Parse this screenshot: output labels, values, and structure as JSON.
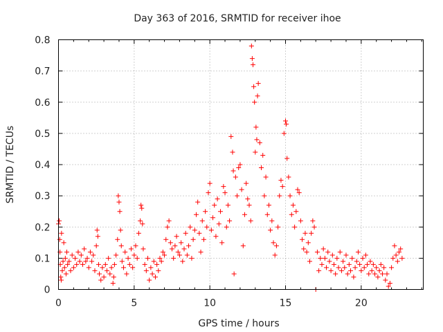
{
  "chart_data": {
    "type": "scatter",
    "title": "Day 363 of 2016, SRMTID for receiver ihoe",
    "xlabel": "GPS time / hours",
    "ylabel": "SRMTID / TECUs",
    "xlim": [
      0,
      24.1
    ],
    "ylim": [
      0,
      0.8
    ],
    "xticks": [
      0,
      5,
      10,
      15,
      20
    ],
    "xtick_labels": [
      "0",
      "5",
      "10",
      "15",
      "20"
    ],
    "yticks": [
      0,
      0.1,
      0.2,
      0.3,
      0.4,
      0.5,
      0.6,
      0.7,
      0.8
    ],
    "ytick_labels": [
      "0",
      "0.1",
      "0.2",
      "0.3",
      "0.4",
      "0.5",
      "0.6",
      "0.7",
      "0.8"
    ],
    "grid": true,
    "marker": "plus",
    "color": "#ff0000",
    "series": [
      {
        "name": "SRMTID",
        "points": [
          [
            0.0,
            0.21
          ],
          [
            0.05,
            0.22
          ],
          [
            0.08,
            0.16
          ],
          [
            0.1,
            0.12
          ],
          [
            0.12,
            0.08
          ],
          [
            0.15,
            0.04
          ],
          [
            0.18,
            0.03
          ],
          [
            0.2,
            0.18
          ],
          [
            0.25,
            0.06
          ],
          [
            0.3,
            0.09
          ],
          [
            0.35,
            0.15
          ],
          [
            0.4,
            0.07
          ],
          [
            0.45,
            0.1
          ],
          [
            0.5,
            0.05
          ],
          [
            0.55,
            0.12
          ],
          [
            0.6,
            0.08
          ],
          [
            0.7,
            0.09
          ],
          [
            0.8,
            0.06
          ],
          [
            0.9,
            0.11
          ],
          [
            1.0,
            0.07
          ],
          [
            1.1,
            0.1
          ],
          [
            1.2,
            0.08
          ],
          [
            1.3,
            0.12
          ],
          [
            1.4,
            0.09
          ],
          [
            1.5,
            0.11
          ],
          [
            1.6,
            0.08
          ],
          [
            1.7,
            0.13
          ],
          [
            1.8,
            0.09
          ],
          [
            1.9,
            0.1
          ],
          [
            2.0,
            0.07
          ],
          [
            2.1,
            0.12
          ],
          [
            2.2,
            0.09
          ],
          [
            2.3,
            0.11
          ],
          [
            2.4,
            0.06
          ],
          [
            2.5,
            0.14
          ],
          [
            2.55,
            0.19
          ],
          [
            2.6,
            0.17
          ],
          [
            2.65,
            0.08
          ],
          [
            2.7,
            0.05
          ],
          [
            2.8,
            0.03
          ],
          [
            2.9,
            0.07
          ],
          [
            3.0,
            0.04
          ],
          [
            3.1,
            0.08
          ],
          [
            3.2,
            0.06
          ],
          [
            3.3,
            0.1
          ],
          [
            3.4,
            0.05
          ],
          [
            3.5,
            0.07
          ],
          [
            3.6,
            0.02
          ],
          [
            3.65,
            0.04
          ],
          [
            3.7,
            0.08
          ],
          [
            3.8,
            0.11
          ],
          [
            3.9,
            0.16
          ],
          [
            3.95,
            0.3
          ],
          [
            4.0,
            0.28
          ],
          [
            4.05,
            0.25
          ],
          [
            4.1,
            0.19
          ],
          [
            4.15,
            0.14
          ],
          [
            4.2,
            0.09
          ],
          [
            4.3,
            0.07
          ],
          [
            4.4,
            0.12
          ],
          [
            4.5,
            0.05
          ],
          [
            4.6,
            0.1
          ],
          [
            4.7,
            0.08
          ],
          [
            4.8,
            0.13
          ],
          [
            4.9,
            0.07
          ],
          [
            5.0,
            0.11
          ],
          [
            5.1,
            0.14
          ],
          [
            5.2,
            0.1
          ],
          [
            5.3,
            0.18
          ],
          [
            5.4,
            0.22
          ],
          [
            5.45,
            0.27
          ],
          [
            5.5,
            0.26
          ],
          [
            5.55,
            0.21
          ],
          [
            5.6,
            0.13
          ],
          [
            5.7,
            0.08
          ],
          [
            5.8,
            0.06
          ],
          [
            5.9,
            0.1
          ],
          [
            6.0,
            0.03
          ],
          [
            6.1,
            0.07
          ],
          [
            6.2,
            0.05
          ],
          [
            6.3,
            0.09
          ],
          [
            6.4,
            0.04
          ],
          [
            6.5,
            0.08
          ],
          [
            6.6,
            0.06
          ],
          [
            6.7,
            0.1
          ],
          [
            6.8,
            0.09
          ],
          [
            6.9,
            0.12
          ],
          [
            7.0,
            0.11
          ],
          [
            7.1,
            0.16
          ],
          [
            7.2,
            0.2
          ],
          [
            7.3,
            0.22
          ],
          [
            7.4,
            0.15
          ],
          [
            7.5,
            0.13
          ],
          [
            7.6,
            0.1
          ],
          [
            7.7,
            0.14
          ],
          [
            7.8,
            0.17
          ],
          [
            7.9,
            0.12
          ],
          [
            8.0,
            0.11
          ],
          [
            8.1,
            0.15
          ],
          [
            8.2,
            0.09
          ],
          [
            8.3,
            0.13
          ],
          [
            8.4,
            0.18
          ],
          [
            8.5,
            0.11
          ],
          [
            8.6,
            0.14
          ],
          [
            8.7,
            0.2
          ],
          [
            8.8,
            0.1
          ],
          [
            8.9,
            0.16
          ],
          [
            9.0,
            0.19
          ],
          [
            9.1,
            0.24
          ],
          [
            9.2,
            0.28
          ],
          [
            9.3,
            0.18
          ],
          [
            9.4,
            0.12
          ],
          [
            9.5,
            0.22
          ],
          [
            9.6,
            0.16
          ],
          [
            9.7,
            0.25
          ],
          [
            9.8,
            0.2
          ],
          [
            9.9,
            0.31
          ],
          [
            10.0,
            0.34
          ],
          [
            10.1,
            0.19
          ],
          [
            10.2,
            0.23
          ],
          [
            10.3,
            0.27
          ],
          [
            10.4,
            0.17
          ],
          [
            10.5,
            0.29
          ],
          [
            10.6,
            0.21
          ],
          [
            10.7,
            0.25
          ],
          [
            10.8,
            0.15
          ],
          [
            10.9,
            0.33
          ],
          [
            11.0,
            0.31
          ],
          [
            11.1,
            0.2
          ],
          [
            11.2,
            0.27
          ],
          [
            11.3,
            0.22
          ],
          [
            11.4,
            0.49
          ],
          [
            11.5,
            0.44
          ],
          [
            11.55,
            0.38
          ],
          [
            11.6,
            0.05
          ],
          [
            11.7,
            0.36
          ],
          [
            11.8,
            0.3
          ],
          [
            11.9,
            0.39
          ],
          [
            12.0,
            0.4
          ],
          [
            12.1,
            0.32
          ],
          [
            12.2,
            0.14
          ],
          [
            12.3,
            0.24
          ],
          [
            12.4,
            0.34
          ],
          [
            12.5,
            0.29
          ],
          [
            12.6,
            0.27
          ],
          [
            12.7,
            0.22
          ],
          [
            12.75,
            0.78
          ],
          [
            12.8,
            0.74
          ],
          [
            12.85,
            0.72
          ],
          [
            12.9,
            0.65
          ],
          [
            12.95,
            0.6
          ],
          [
            13.0,
            0.44
          ],
          [
            13.05,
            0.52
          ],
          [
            13.1,
            0.48
          ],
          [
            13.15,
            0.62
          ],
          [
            13.2,
            0.66
          ],
          [
            13.3,
            0.47
          ],
          [
            13.4,
            0.39
          ],
          [
            13.5,
            0.43
          ],
          [
            13.6,
            0.3
          ],
          [
            13.7,
            0.36
          ],
          [
            13.8,
            0.24
          ],
          [
            13.9,
            0.27
          ],
          [
            14.0,
            0.19
          ],
          [
            14.1,
            0.22
          ],
          [
            14.2,
            0.15
          ],
          [
            14.3,
            0.11
          ],
          [
            14.4,
            0.14
          ],
          [
            14.5,
            0.2
          ],
          [
            14.6,
            0.3
          ],
          [
            14.7,
            0.35
          ],
          [
            14.8,
            0.33
          ],
          [
            14.9,
            0.5
          ],
          [
            15.0,
            0.54
          ],
          [
            15.05,
            0.53
          ],
          [
            15.1,
            0.42
          ],
          [
            15.2,
            0.36
          ],
          [
            15.3,
            0.3
          ],
          [
            15.4,
            0.24
          ],
          [
            15.5,
            0.27
          ],
          [
            15.6,
            0.2
          ],
          [
            15.7,
            0.25
          ],
          [
            15.8,
            0.32
          ],
          [
            15.9,
            0.31
          ],
          [
            16.0,
            0.22
          ],
          [
            16.1,
            0.16
          ],
          [
            16.2,
            0.13
          ],
          [
            16.3,
            0.18
          ],
          [
            16.4,
            0.12
          ],
          [
            16.5,
            0.15
          ],
          [
            16.6,
            0.09
          ],
          [
            16.7,
            0.18
          ],
          [
            16.8,
            0.22
          ],
          [
            16.9,
            0.2
          ],
          [
            17.0,
            0.0
          ],
          [
            17.1,
            0.12
          ],
          [
            17.2,
            0.06
          ],
          [
            17.3,
            0.1
          ],
          [
            17.4,
            0.08
          ],
          [
            17.5,
            0.13
          ],
          [
            17.6,
            0.1
          ],
          [
            17.7,
            0.07
          ],
          [
            17.8,
            0.12
          ],
          [
            17.9,
            0.09
          ],
          [
            18.0,
            0.06
          ],
          [
            18.1,
            0.11
          ],
          [
            18.2,
            0.08
          ],
          [
            18.3,
            0.05
          ],
          [
            18.4,
            0.1
          ],
          [
            18.5,
            0.07
          ],
          [
            18.6,
            0.12
          ],
          [
            18.7,
            0.06
          ],
          [
            18.8,
            0.09
          ],
          [
            18.9,
            0.07
          ],
          [
            19.0,
            0.11
          ],
          [
            19.1,
            0.05
          ],
          [
            19.2,
            0.08
          ],
          [
            19.3,
            0.06
          ],
          [
            19.4,
            0.1
          ],
          [
            19.5,
            0.04
          ],
          [
            19.6,
            0.07
          ],
          [
            19.7,
            0.09
          ],
          [
            19.8,
            0.12
          ],
          [
            19.9,
            0.08
          ],
          [
            20.0,
            0.06
          ],
          [
            20.1,
            0.1
          ],
          [
            20.2,
            0.07
          ],
          [
            20.3,
            0.11
          ],
          [
            20.4,
            0.08
          ],
          [
            20.5,
            0.05
          ],
          [
            20.6,
            0.09
          ],
          [
            20.7,
            0.06
          ],
          [
            20.8,
            0.08
          ],
          [
            20.9,
            0.05
          ],
          [
            21.0,
            0.07
          ],
          [
            21.1,
            0.04
          ],
          [
            21.2,
            0.06
          ],
          [
            21.3,
            0.08
          ],
          [
            21.4,
            0.05
          ],
          [
            21.5,
            0.07
          ],
          [
            21.6,
            0.03
          ],
          [
            21.7,
            0.05
          ],
          [
            21.8,
            0.01
          ],
          [
            21.9,
            0.02
          ],
          [
            22.0,
            0.07
          ],
          [
            22.1,
            0.1
          ],
          [
            22.2,
            0.14
          ],
          [
            22.3,
            0.11
          ],
          [
            22.4,
            0.09
          ],
          [
            22.5,
            0.12
          ],
          [
            22.6,
            0.13
          ],
          [
            22.7,
            0.1
          ]
        ]
      }
    ]
  }
}
